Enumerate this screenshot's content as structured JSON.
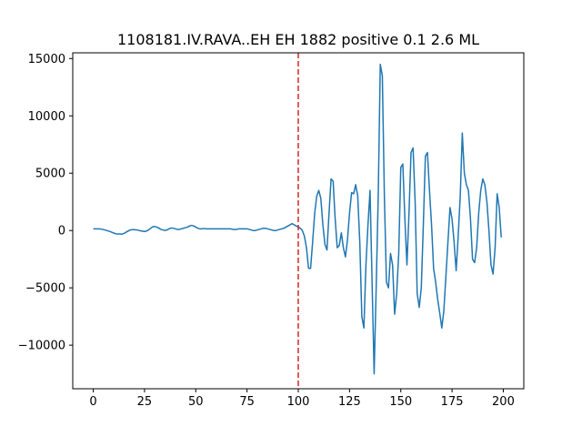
{
  "chart_data": {
    "type": "line",
    "title": "1108181.IV.RAVA..EH EH 1882 positive 0.1 2.6 ML",
    "xlabel": "",
    "ylabel": "",
    "xlim": [
      -10,
      210
    ],
    "ylim": [
      -13800,
      15500
    ],
    "xticks": [
      0,
      25,
      50,
      75,
      100,
      125,
      150,
      175,
      200
    ],
    "yticks": [
      -10000,
      -5000,
      0,
      5000,
      10000,
      15000
    ],
    "grid": false,
    "line_color": "#1f77b4",
    "marker_line": {
      "x": 100,
      "color": "#d62728",
      "style": "dashed"
    },
    "series": [
      {
        "values": [
          150,
          150,
          150,
          150,
          120,
          80,
          30,
          -20,
          -80,
          -150,
          -220,
          -280,
          -300,
          -300,
          -320,
          -250,
          -150,
          -50,
          50,
          80,
          80,
          60,
          20,
          -20,
          -50,
          -80,
          -40,
          50,
          200,
          320,
          350,
          300,
          200,
          100,
          50,
          20,
          50,
          150,
          220,
          200,
          150,
          100,
          100,
          150,
          200,
          250,
          300,
          400,
          450,
          400,
          300,
          200,
          150,
          150,
          180,
          150,
          150,
          150,
          150,
          150,
          150,
          150,
          150,
          150,
          150,
          150,
          150,
          150,
          100,
          100,
          100,
          150,
          150,
          150,
          150,
          150,
          100,
          50,
          0,
          0,
          50,
          100,
          150,
          200,
          200,
          150,
          100,
          50,
          0,
          0,
          50,
          100,
          150,
          200,
          300,
          400,
          500,
          600,
          500,
          400,
          300,
          200,
          0,
          -500,
          -1500,
          -3300,
          -3300,
          -1000,
          1500,
          3000,
          3500,
          2800,
          500,
          -1200,
          -1700,
          1500,
          4500,
          4300,
          1000,
          -1500,
          -1300,
          -200,
          -1500,
          -2300,
          -800,
          1500,
          3300,
          3200,
          4000,
          3000,
          -1000,
          -7500,
          -8500,
          -3000,
          500,
          3500,
          -4500,
          -12500,
          -5000,
          3000,
          14500,
          13500,
          3000,
          -4500,
          -5000,
          -2000,
          -3000,
          -7300,
          -5500,
          -2000,
          5500,
          5800,
          1000,
          -3000,
          1500,
          6800,
          7200,
          2500,
          -5500,
          -6700,
          -5000,
          500,
          6500,
          6800,
          3500,
          500,
          -3300,
          -4500,
          -6000,
          -7200,
          -8500,
          -7000,
          -4000,
          -1000,
          2000,
          1000,
          -1000,
          -3500,
          -500,
          3000,
          8500,
          5000,
          4000,
          3500,
          1000,
          -2500,
          -2800,
          -1500,
          1500,
          3500,
          4500,
          4000,
          2500,
          0,
          -3000,
          -3800,
          -1500,
          3200,
          2000,
          -600
        ]
      }
    ]
  }
}
